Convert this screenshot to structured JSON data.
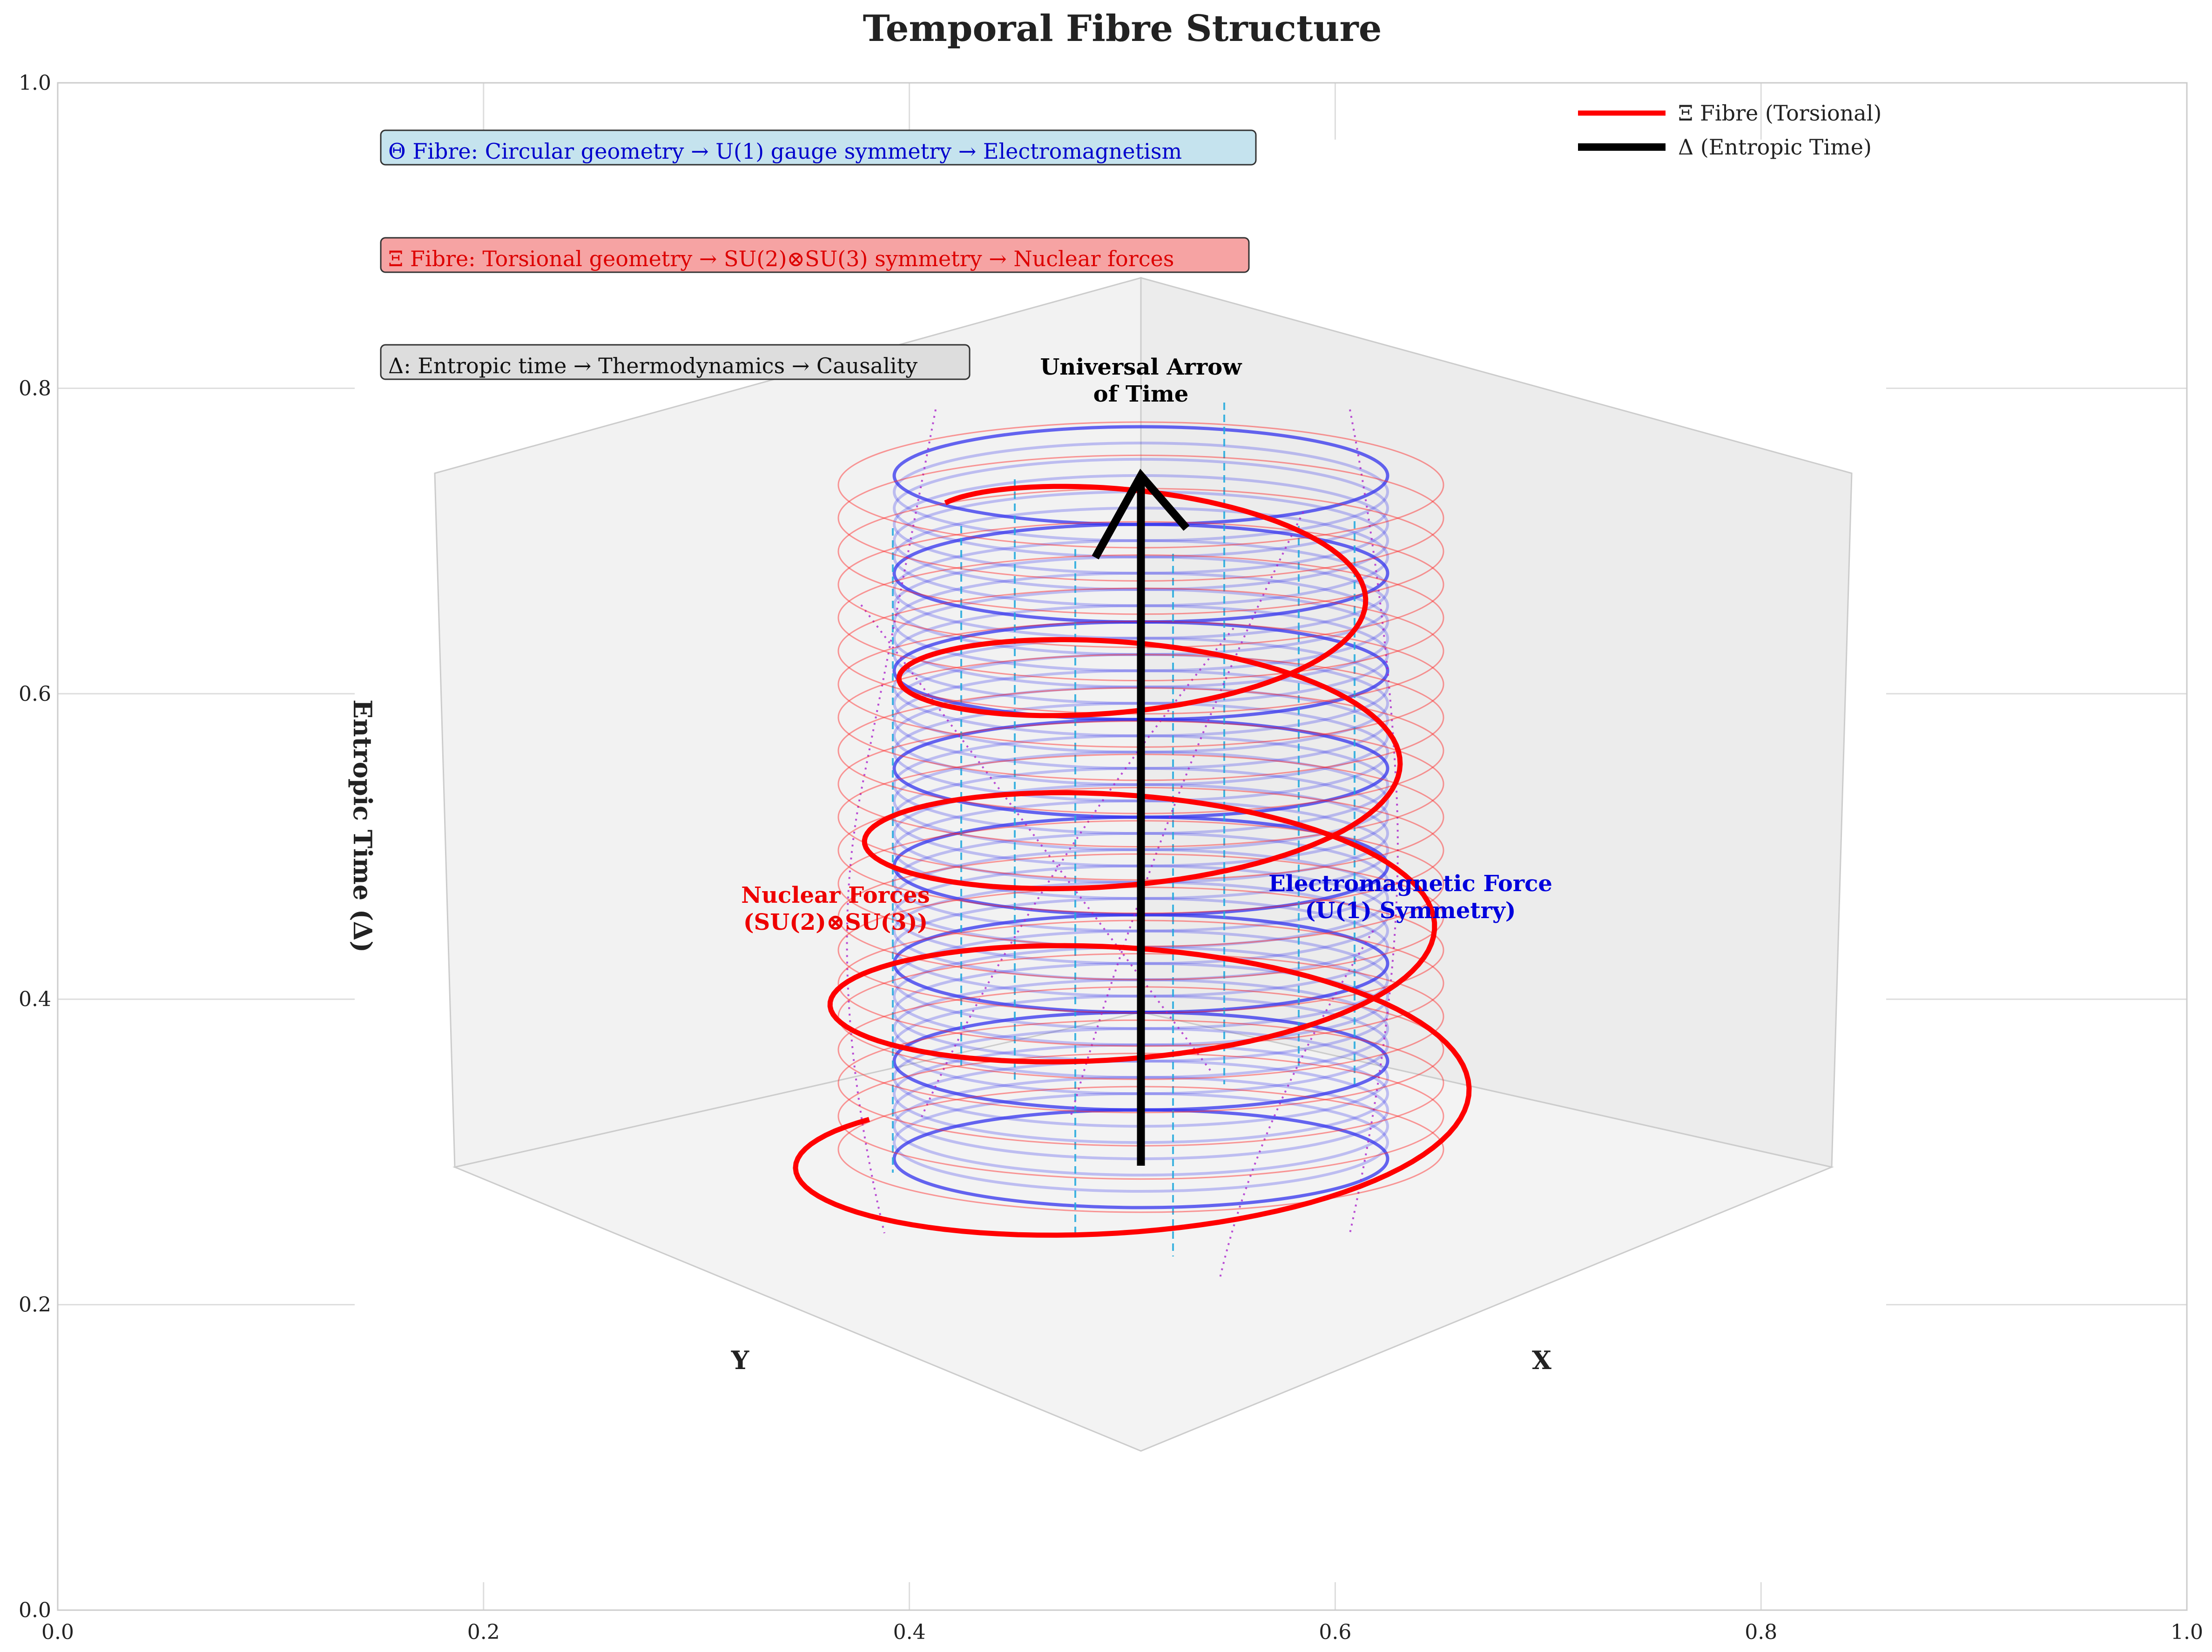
{
  "chart_data": {
    "type": "line",
    "title": "Temporal Fibre Structure",
    "x_ticks": [
      "0.0",
      "0.2",
      "0.4",
      "0.6",
      "0.8",
      "1.0"
    ],
    "y_ticks": [
      "0.0",
      "0.2",
      "0.4",
      "0.6",
      "0.8",
      "1.0"
    ],
    "xlim": [
      0,
      1
    ],
    "ylim": [
      0,
      1
    ],
    "grid": true,
    "axis3d": {
      "xlabel": "X",
      "ylabel": "Y",
      "zlabel": "Entropic Time (Δ)"
    },
    "series": [
      {
        "name": "Ξ Fibre (Torsional)",
        "color": "#ff0000"
      },
      {
        "name": "Δ (Entropic Time)",
        "color": "#000000"
      }
    ],
    "theta_fibre_color": "#3333ee",
    "legend_position": "upper right",
    "info_boxes": [
      {
        "text": "Θ Fibre: Circular geometry → U(1) gauge symmetry → Electromagnetism",
        "text_color": "#0000cc",
        "fill": "#c5e3ee"
      },
      {
        "text": "Ξ Fibre: Torsional geometry → SU(2)⊗SU(3) symmetry → Nuclear forces",
        "text_color": "#dd0000",
        "fill": "#f6a3a3"
      },
      {
        "text": "Δ: Entropic time → Thermodynamics → Causality",
        "text_color": "#111111",
        "fill": "#dddddd"
      }
    ],
    "annotations": [
      {
        "lines": [
          "Universal Arrow",
          "of Time"
        ],
        "color": "#000000"
      },
      {
        "lines": [
          "Nuclear Forces",
          "(SU(2)⊗SU(3))"
        ],
        "color": "#ee0000"
      },
      {
        "lines": [
          "Electromagnetic Force",
          "(U(1) Symmetry)"
        ],
        "color": "#0000dd"
      }
    ]
  }
}
